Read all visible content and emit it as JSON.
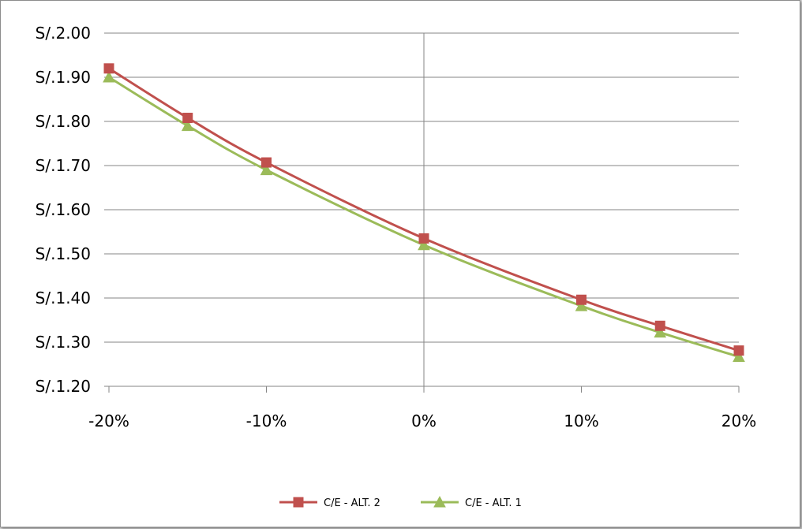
{
  "chart_data": {
    "type": "line",
    "title": "",
    "xlabel": "",
    "ylabel": "",
    "categories": [
      "-20%",
      "-15%",
      "-10%",
      "0%",
      "10%",
      "15%",
      "20%"
    ],
    "x": [
      -20,
      -15,
      -10,
      0,
      10,
      15,
      20
    ],
    "xlim": [
      -20,
      20
    ],
    "x_tick_values": [
      -20,
      -10,
      0,
      10,
      20
    ],
    "x_tick_labels": [
      "-20%",
      "-10%",
      "0%",
      "10%",
      "20%"
    ],
    "ylim": [
      1.2,
      2.0
    ],
    "y_tick_values": [
      1.2,
      1.3,
      1.4,
      1.5,
      1.6,
      1.7,
      1.8,
      1.9,
      2.0
    ],
    "y_tick_labels": [
      "S/.1.20",
      "S/.1.30",
      "S/.1.40",
      "S/.1.50",
      "S/.1.60",
      "S/.1.70",
      "S/.1.80",
      "S/.1.90",
      "S/.2.00"
    ],
    "grid": "horizontal",
    "legend_position": "bottom",
    "series": [
      {
        "name": "C/E - ALT. 2",
        "values": [
          1.92,
          1.808,
          1.707,
          1.535,
          1.396,
          1.337,
          1.281
        ],
        "color": "#c0504d",
        "marker": "square"
      },
      {
        "name": "C/E - ALT. 1",
        "values": [
          1.9,
          1.79,
          1.69,
          1.52,
          1.382,
          1.322,
          1.267
        ],
        "color": "#9bbb59",
        "marker": "triangle"
      }
    ]
  },
  "colors": {
    "background": "#ffffff",
    "gridline": "#868686",
    "frame": "#8c8c8c"
  }
}
